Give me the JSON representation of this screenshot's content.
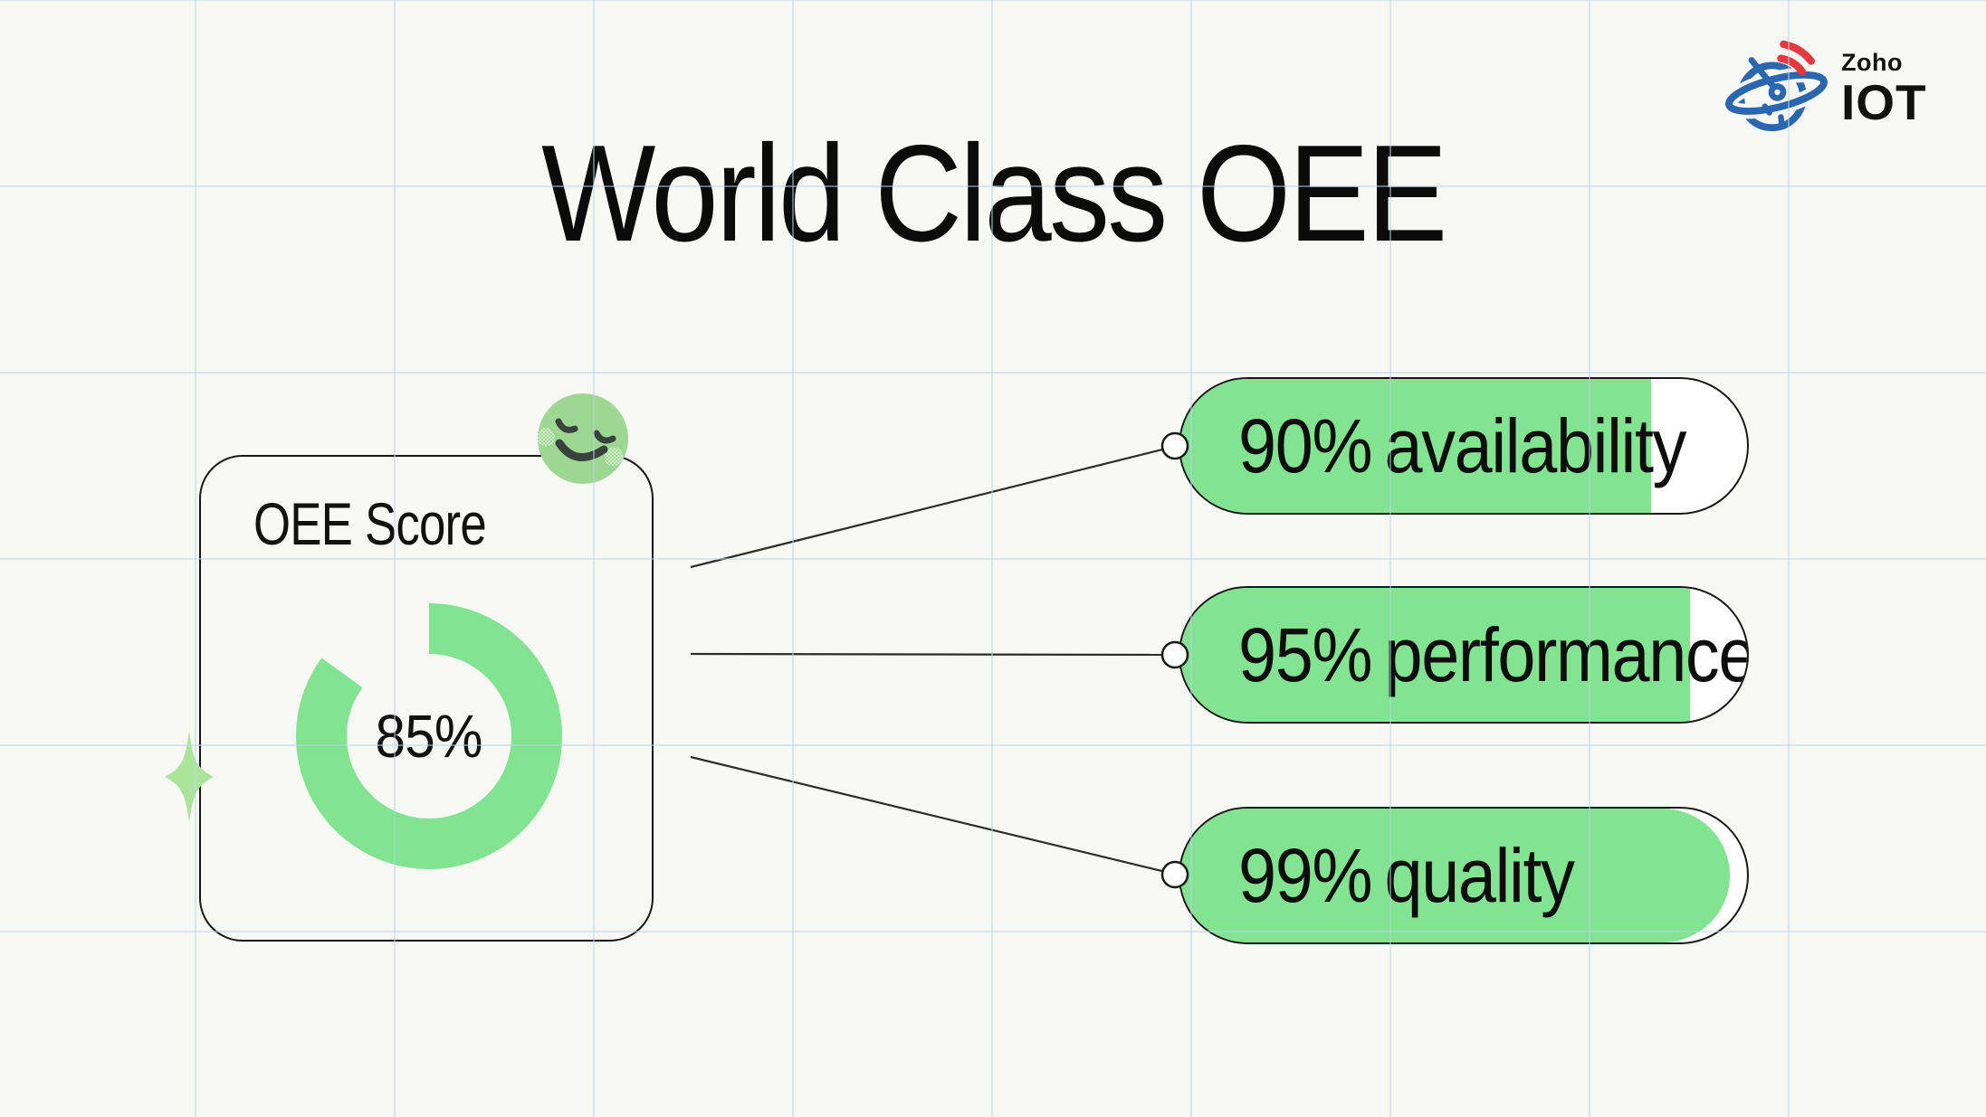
{
  "header": {
    "title": "World Class OEE"
  },
  "logo": {
    "brand": "Zoho",
    "product": "IOT"
  },
  "score_card": {
    "title": "OEE Score",
    "score_label": "85%",
    "score_value": 85
  },
  "metrics": [
    {
      "label": "90% availability",
      "value": 90,
      "fill_percent": 83
    },
    {
      "label": "95% performance",
      "value": 95,
      "fill_percent": 90
    },
    {
      "label": "99% quality",
      "value": 99,
      "fill_percent": 97
    }
  ],
  "icons": {
    "smiley": "relaxed-smiley-face",
    "sparkle": "four-point-sparkle",
    "logo_icon": "satellite-planet"
  },
  "colors": {
    "accent_green": "#82e390",
    "smiley_green": "#9ed792",
    "sparkle_green": "#abe39b",
    "logo_blue": "#2b67b1",
    "logo_red": "#e23a3f",
    "ink": "#111111",
    "background": "#f8f8f4"
  },
  "chart_data": {
    "type": "donut",
    "title": "OEE Score",
    "value": 85,
    "max": 100,
    "center_label": "85%"
  }
}
